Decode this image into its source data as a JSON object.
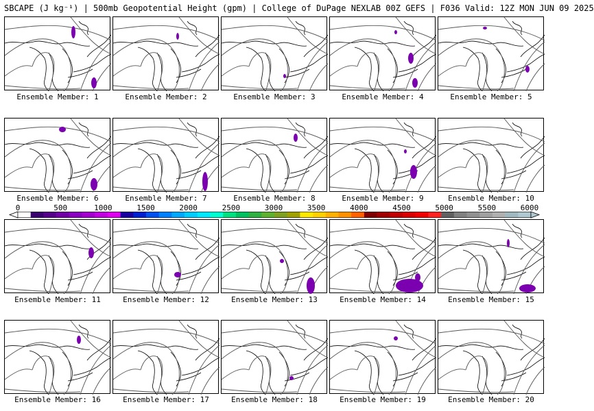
{
  "title": "SBCAPE (J kg⁻¹) | 500mb Geopotential Height (gpm) | College of DuPage NEXLAB 00Z GEFS | F036 Valid: 12Z MON JUN 09 2025",
  "member_prefix": "Ensemble Member: ",
  "members": [
    1,
    2,
    3,
    4,
    5,
    6,
    7,
    8,
    9,
    10,
    11,
    12,
    13,
    14,
    15,
    16,
    17,
    18,
    19,
    20
  ],
  "colorbar": {
    "labels": [
      "0",
      "500",
      "1000",
      "1500",
      "2000",
      "2500",
      "3000",
      "3500",
      "4000",
      "4500",
      "5000",
      "5500",
      "6000"
    ],
    "colors": [
      "#ffffff",
      "#3a0070",
      "#55008a",
      "#7000a5",
      "#8a00c0",
      "#a300d0",
      "#c000e0",
      "#e000f0",
      "#1a00a0",
      "#0020d0",
      "#0050f0",
      "#0080ff",
      "#00a8ff",
      "#00ccff",
      "#00e8ff",
      "#00ffd0",
      "#00e080",
      "#00c060",
      "#30b040",
      "#60b030",
      "#80a020",
      "#a0a000",
      "#ffe800",
      "#ffd000",
      "#ffb000",
      "#ff9000",
      "#ff6000",
      "#800000",
      "#a00000",
      "#c00000",
      "#d80000",
      "#f00000",
      "#ff2020",
      "#606060",
      "#808080",
      "#909090",
      "#a0a0a0",
      "#b0b0b0",
      "#a0b8c0",
      "#b0c8d0"
    ],
    "cape_color": "#7a00b0"
  }
}
